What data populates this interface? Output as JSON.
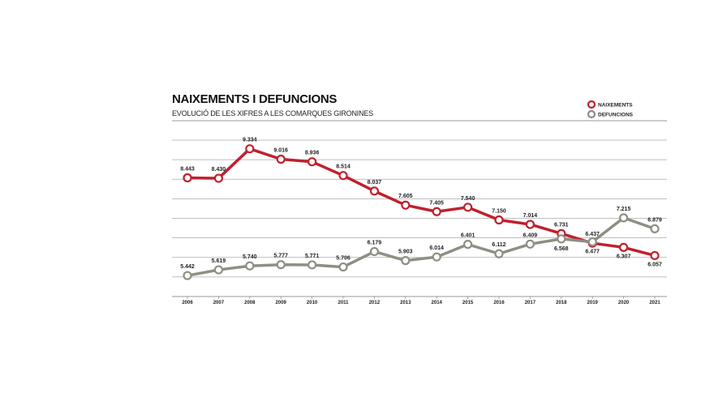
{
  "chart_data": {
    "type": "line",
    "title": "NAIXEMENTS I DEFUNCIONS",
    "subtitle": "EVOLUCIÓ DE LES XIFRES A LES COMARQUES GIRONINES",
    "xlabel": "",
    "ylabel": "",
    "x": [
      "2006",
      "2007",
      "2008",
      "2009",
      "2010",
      "2011",
      "2012",
      "2013",
      "2014",
      "2015",
      "2016",
      "2017",
      "2018",
      "2019",
      "2020",
      "2021"
    ],
    "ylim": [
      4.8,
      9.6
    ],
    "grid": true,
    "legend_position": "top-right",
    "series": [
      {
        "name": "NAIXEMENTS",
        "color": "#c0202e",
        "values": [
          8.443,
          8.43,
          9.334,
          9.016,
          8.936,
          8.514,
          8.037,
          7.605,
          7.405,
          7.54,
          7.15,
          7.014,
          6.731,
          6.437,
          6.307,
          6.057
        ],
        "labels": [
          "8.443",
          "8.430",
          "9.334",
          "9.016",
          "8.936",
          "8.514",
          "8.037",
          "7.605",
          "7.405",
          "7.540",
          "7.150",
          "7.014",
          "6.731",
          "6.437",
          "6.307",
          "6.057"
        ]
      },
      {
        "name": "DEFUNCIONS",
        "color": "#8e8e84",
        "values": [
          5.442,
          5.619,
          5.74,
          5.777,
          5.771,
          5.706,
          6.179,
          5.903,
          6.014,
          6.401,
          6.112,
          6.409,
          6.568,
          6.477,
          7.215,
          6.879
        ],
        "labels": [
          "5.442",
          "5.619",
          "5.740",
          "5.777",
          "5.771",
          "5.706",
          "6.179",
          "5.903",
          "6.014",
          "6.401",
          "6.112",
          "6.409",
          "6.568",
          "6.477",
          "7.215",
          "6.879"
        ]
      }
    ]
  }
}
